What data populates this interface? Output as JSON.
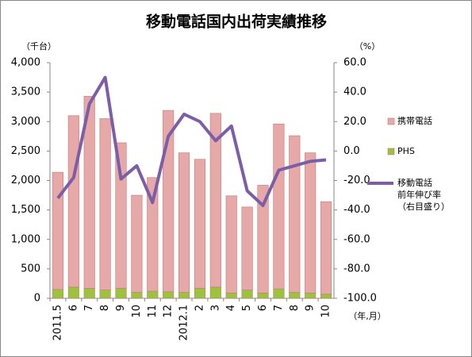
{
  "chart_data": {
    "type": "bar",
    "title": "移動電話国内出荷実績推移",
    "y_unit": "（千台）",
    "y2_unit": "（%）",
    "x_unit": "（年,月）",
    "categories": [
      "2011.5",
      "6",
      "7",
      "8",
      "9",
      "10",
      "11",
      "12",
      "2012.1",
      "2",
      "3",
      "4",
      "5",
      "6",
      "7",
      "8",
      "9",
      "10"
    ],
    "series": [
      {
        "name": "携帯電話",
        "color": "#e6a9a7",
        "stack": true,
        "values": [
          1990,
          2910,
          3260,
          2910,
          2470,
          1650,
          1930,
          3080,
          2370,
          2190,
          2950,
          1650,
          1410,
          1830,
          2800,
          2660,
          2380,
          1570
        ]
      },
      {
        "name": "PHS",
        "color": "#9bc33c",
        "stack": true,
        "values": [
          150,
          190,
          170,
          140,
          170,
          100,
          120,
          110,
          100,
          170,
          190,
          90,
          140,
          90,
          160,
          100,
          90,
          70
        ]
      },
      {
        "name": "移動電話\n前年伸び率\n（右目盛り）",
        "color": "#7b5ea7",
        "type": "line",
        "axis": "y2",
        "values": [
          -32,
          -18,
          32,
          50,
          -19,
          -10,
          -35,
          10,
          25,
          20,
          7,
          17,
          -27,
          -37,
          -13,
          -10,
          -7,
          -6
        ]
      }
    ],
    "ylim": [
      0,
      4000
    ],
    "yticks": [
      0,
      500,
      {
        "value": 1000,
        "label": "1,000"
      },
      {
        "value": 1500,
        "label": "1,500"
      },
      {
        "value": 2000,
        "label": "2,000"
      },
      {
        "value": 2500,
        "label": "2,500"
      },
      {
        "value": 3000,
        "label": "3,000"
      },
      {
        "value": 3500,
        "label": "3,500"
      },
      {
        "value": 4000,
        "label": "4,000"
      }
    ],
    "y2lim": [
      -100,
      60
    ],
    "y2ticks": [
      {
        "value": -100,
        "label": "-100.0"
      },
      {
        "value": -80,
        "label": "-80.0"
      },
      {
        "value": -60,
        "label": "-60.0"
      },
      {
        "value": -40,
        "label": "-40.0"
      },
      {
        "value": -20,
        "label": "-20.0"
      },
      {
        "value": 0,
        "label": "0.0"
      },
      {
        "value": 20,
        "label": "20.0"
      },
      {
        "value": 40,
        "label": "40.0"
      },
      {
        "value": 60,
        "label": "60.0"
      }
    ],
    "legend": "right"
  }
}
